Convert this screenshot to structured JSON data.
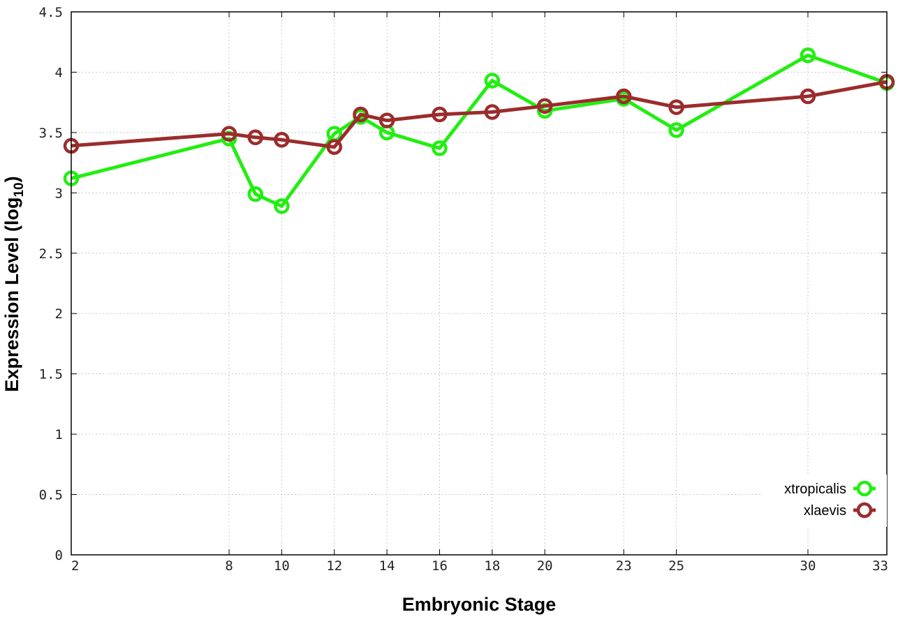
{
  "chart_data": {
    "type": "line",
    "xlabel": "Embryonic Stage",
    "ylabel": "Expression Level (log",
    "ylabel_subscript": "10",
    "ylabel_suffix": ")",
    "x_ticks": [
      2,
      8,
      10,
      12,
      14,
      16,
      18,
      20,
      23,
      25,
      30,
      33
    ],
    "y_ticks": [
      "0",
      "0.5",
      "1",
      "1.5",
      "2",
      "2.5",
      "3",
      "3.5",
      "4",
      "4.5"
    ],
    "ylim": [
      0,
      4.5
    ],
    "xlim": [
      2,
      33
    ],
    "grid": true,
    "legend_position": "bottom-right",
    "series": [
      {
        "name": "xtropicalis",
        "color": "#22ee11",
        "x": [
          2,
          8,
          9,
          10,
          12,
          13,
          14,
          16,
          18,
          20,
          23,
          25,
          30,
          33
        ],
        "y": [
          3.12,
          3.45,
          2.99,
          2.89,
          3.49,
          3.63,
          3.5,
          3.37,
          3.93,
          3.68,
          3.78,
          3.52,
          4.14,
          3.91
        ]
      },
      {
        "name": "xlaevis",
        "color": "#9b2c2c",
        "x": [
          2,
          8,
          9,
          10,
          12,
          13,
          14,
          16,
          18,
          20,
          23,
          25,
          30,
          33
        ],
        "y": [
          3.39,
          3.49,
          3.46,
          3.44,
          3.38,
          3.65,
          3.6,
          3.65,
          3.67,
          3.72,
          3.8,
          3.71,
          3.8,
          3.92
        ]
      }
    ]
  }
}
